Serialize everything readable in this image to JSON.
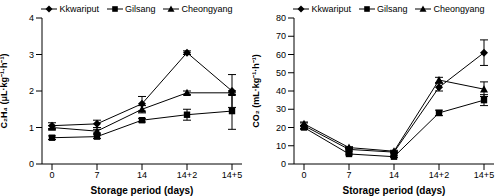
{
  "chart_data": [
    {
      "type": "line",
      "categories": [
        "0",
        "7",
        "14",
        "14+2",
        "14+5"
      ],
      "x_label": "Storage period (days)",
      "y_label": "C₂H₄ (μL·kg⁻¹·h⁻¹)",
      "ylim": [
        0,
        4
      ],
      "yticks": [
        0,
        1,
        2,
        3,
        4
      ],
      "legend": "top",
      "series": [
        {
          "name": "Kkwariput",
          "color": "#000000",
          "marker": "diamond",
          "values": [
            1.05,
            1.1,
            1.65,
            3.05,
            2.0
          ],
          "errors": [
            0.08,
            0.1,
            0.2,
            0.05,
            0.45
          ]
        },
        {
          "name": "Gilsang",
          "color": "#000000",
          "marker": "square",
          "values": [
            0.72,
            0.75,
            1.2,
            1.35,
            1.45
          ],
          "errors": [
            0.05,
            0.05,
            0.05,
            0.15,
            0.5
          ]
        },
        {
          "name": "Cheongyang",
          "color": "#000000",
          "marker": "triangle",
          "values": [
            1.0,
            0.9,
            1.5,
            1.95,
            1.95
          ],
          "errors": [
            0.05,
            0.05,
            0.1,
            0.05,
            0.05
          ]
        }
      ]
    },
    {
      "type": "line",
      "categories": [
        "0",
        "7",
        "14",
        "14+2",
        "14+5"
      ],
      "x_label": "Storage period (days)",
      "y_label": "CO₂ (mL·kg⁻¹·h⁻¹)",
      "ylim": [
        0,
        80
      ],
      "yticks": [
        0,
        10,
        20,
        30,
        40,
        50,
        60,
        70,
        80
      ],
      "legend": "top",
      "series": [
        {
          "name": "Kkwariput",
          "color": "#000000",
          "marker": "diamond",
          "values": [
            21,
            8,
            6.5,
            42,
            61
          ],
          "errors": [
            1.5,
            1,
            0.5,
            2,
            7
          ]
        },
        {
          "name": "Gilsang",
          "color": "#000000",
          "marker": "square",
          "values": [
            20,
            5.5,
            4,
            28,
            35
          ],
          "errors": [
            1,
            0.5,
            0.5,
            1.5,
            3
          ]
        },
        {
          "name": "Cheongyang",
          "color": "#000000",
          "marker": "triangle",
          "values": [
            22,
            9,
            7,
            46,
            41
          ],
          "errors": [
            1,
            0.5,
            0.5,
            1.5,
            4
          ]
        }
      ]
    }
  ]
}
